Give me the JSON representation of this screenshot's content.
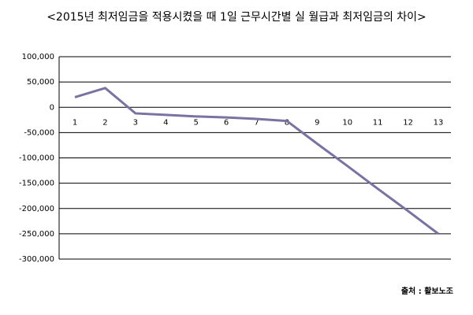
{
  "chart_data": {
    "type": "line",
    "title": "<2015년 최저임금을 적용시켰을 때 1일 근무시간별 실 월급과 최저임금의 차이>",
    "source": "출처 : 활보노조",
    "categories": [
      "1",
      "2",
      "3",
      "4",
      "5",
      "6",
      "7",
      "8",
      "9",
      "10",
      "11",
      "12",
      "13"
    ],
    "series": [
      {
        "color": "#7b72a3",
        "values": [
          20000,
          38000,
          -12000,
          -15000,
          -18000,
          -20000,
          -23000,
          -27000,
          -72000,
          -116000,
          -161000,
          -205000,
          -250000
        ]
      }
    ],
    "ylim": [
      -300000,
      100000
    ],
    "yticks": [
      {
        "value": -300000,
        "label": "-300,000"
      },
      {
        "value": -250000,
        "label": "-250,000"
      },
      {
        "value": -200000,
        "label": "-200,000"
      },
      {
        "value": -150000,
        "label": "-150,000"
      },
      {
        "value": -100000,
        "label": "-100,000"
      },
      {
        "value": -50000,
        "label": "-50,000"
      },
      0,
      {
        "value": 50000,
        "label": "50,000"
      },
      {
        "value": 100000,
        "label": "100,000"
      }
    ],
    "grid": true
  }
}
